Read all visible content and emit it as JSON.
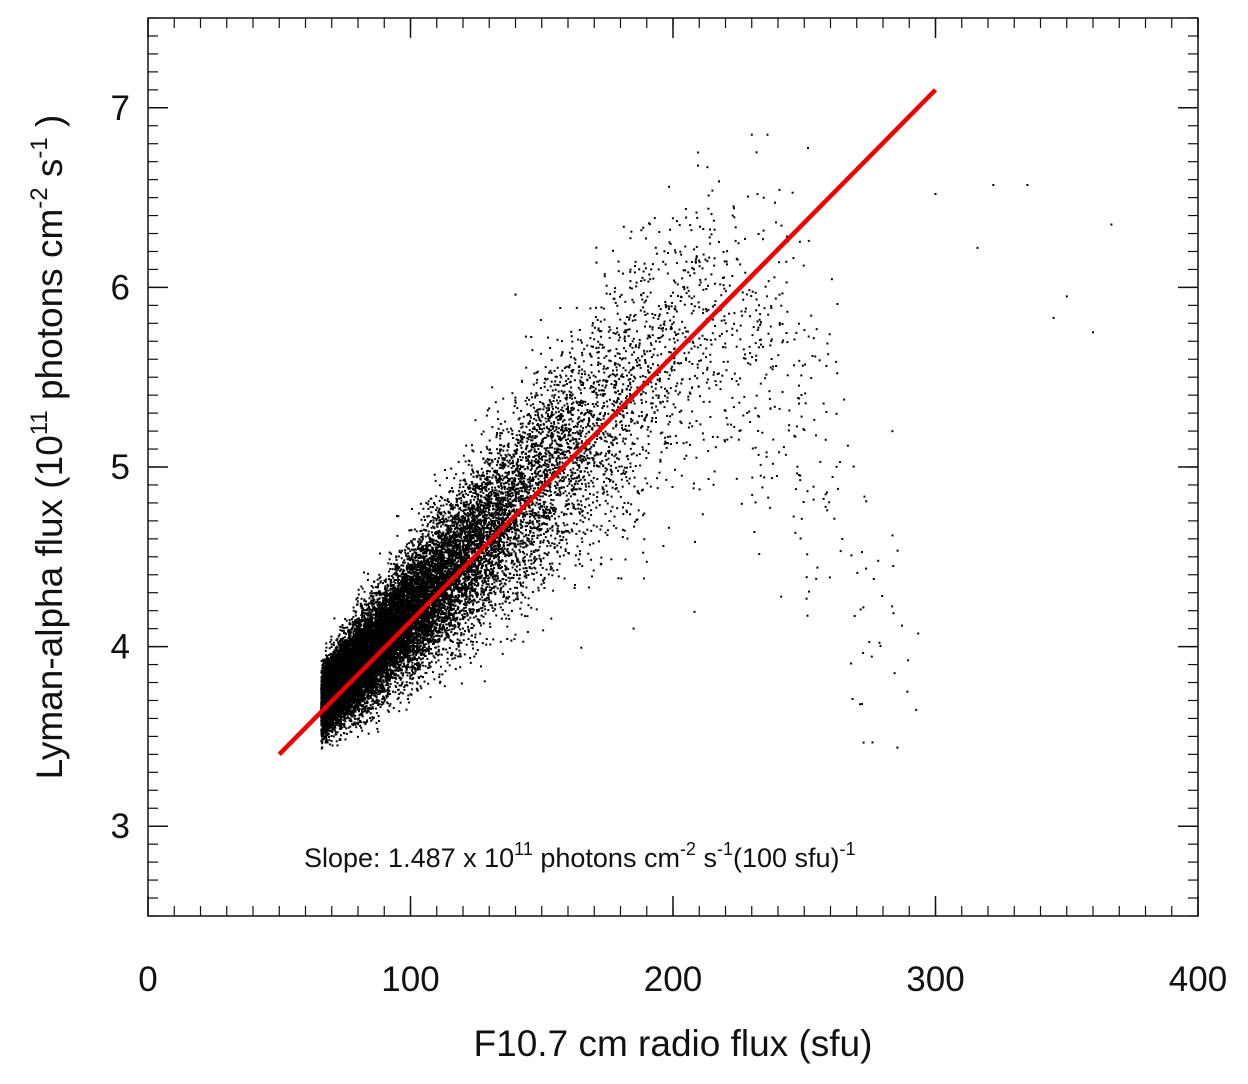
{
  "chart_data": {
    "type": "scatter",
    "xlabel": "F10.7 cm radio flux (sfu)",
    "ylabel": "Lyman-alpha flux (10^11 photons cm^-2 s^-1 )",
    "ylabel_parts": {
      "base": "Lyman-alpha flux (10",
      "exp1": "11",
      "mid": " photons cm",
      "exp2": "-2",
      "mid2": " s",
      "exp3": "-1",
      "end": " )"
    },
    "xlim": [
      0,
      400
    ],
    "ylim": [
      2.5,
      7.5
    ],
    "xticks": [
      "0",
      "100",
      "200",
      "300",
      "400"
    ],
    "yticks": [
      "3",
      "4",
      "5",
      "6",
      "7"
    ],
    "xtick_values": [
      0,
      100,
      200,
      300,
      400
    ],
    "ytick_values": [
      3,
      4,
      5,
      6,
      7
    ],
    "x_minor_step": 10,
    "y_minor_step": 0.1,
    "grid": false,
    "point_color": "#000000",
    "fit_color": "#ee0000",
    "fit_line": {
      "x": [
        50,
        300
      ],
      "y": [
        3.4,
        7.1
      ]
    },
    "annotation": {
      "prefix": "Slope: 1.487 x 10",
      "exp1": "11",
      "mid": " photons  cm",
      "exp2": "-2",
      "mid2": " s",
      "exp3": "-1",
      "mid3": "(100 sfu)",
      "exp4": "-1"
    },
    "scatter_model": {
      "n_points": 22000,
      "x_min": 66,
      "trend": "y ≈ 3.4 + 1.487·(x − 66)/100, saturating above ~200 sfu",
      "y_range_observed": [
        3.43,
        6.85
      ]
    },
    "notable_points": [
      {
        "x": 367,
        "y": 6.35
      },
      {
        "x": 360,
        "y": 5.75
      },
      {
        "x": 350,
        "y": 5.95
      },
      {
        "x": 345,
        "y": 5.83
      },
      {
        "x": 335,
        "y": 6.57
      },
      {
        "x": 322,
        "y": 6.57
      },
      {
        "x": 316,
        "y": 6.22
      },
      {
        "x": 300,
        "y": 6.52
      },
      {
        "x": 255,
        "y": 4.44
      },
      {
        "x": 236,
        "y": 6.85
      },
      {
        "x": 230,
        "y": 6.85
      },
      {
        "x": 140,
        "y": 5.96
      },
      {
        "x": 185,
        "y": 4.1
      }
    ]
  }
}
